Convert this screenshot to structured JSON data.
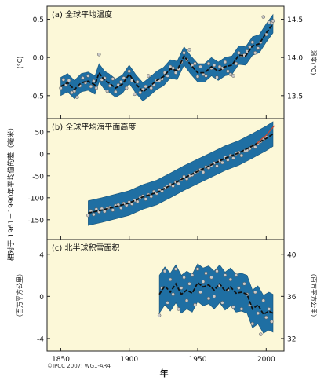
{
  "figure": {
    "y_label_left": "相对于 1961－1990年平均值的差（毫米）",
    "x_label": "年",
    "copyright": "©IPCC 2007: WG1-AR4",
    "colors": {
      "background": "#fcf8d8",
      "band": "#1f6fa3",
      "band_edge": "#16537a",
      "point_fill": "#c9c9c9",
      "line": "#111111",
      "recent_line": "#d2462a"
    }
  },
  "chart_data": [
    {
      "type": "line",
      "title": "(a) 全球平均温度",
      "ylabel_left": "(°C)",
      "ylabel_right": "温度(°C)",
      "xlim": [
        1840,
        2013
      ],
      "ylim": [
        -0.8,
        0.67
      ],
      "y_ticks_left": [
        {
          "value": 0.5,
          "label": "0.5"
        },
        {
          "value": 0,
          "label": "0.0"
        },
        {
          "value": -0.5,
          "label": "-0.5"
        }
      ],
      "y_ticks_right": [
        {
          "value": 0.5,
          "label": "14.5"
        },
        {
          "value": 0,
          "label": "14.0"
        },
        {
          "value": -0.5,
          "label": "13.5"
        }
      ],
      "band_halfwidth": 0.12,
      "series": [
        {
          "x": [
            1850,
            1855,
            1860,
            1865,
            1870,
            1875,
            1878,
            1882,
            1885,
            1890,
            1895,
            1900,
            1905,
            1910,
            1915,
            1920,
            1925,
            1930,
            1935,
            1940,
            1945,
            1950,
            1955,
            1960,
            1965,
            1970,
            1975,
            1980,
            1985,
            1990,
            1995,
            2000,
            2005
          ],
          "y": [
            -0.38,
            -0.33,
            -0.42,
            -0.33,
            -0.31,
            -0.36,
            -0.2,
            -0.3,
            -0.33,
            -0.4,
            -0.35,
            -0.22,
            -0.35,
            -0.45,
            -0.38,
            -0.3,
            -0.25,
            -0.15,
            -0.17,
            0.02,
            -0.1,
            -0.2,
            -0.2,
            -0.12,
            -0.18,
            -0.12,
            -0.1,
            0.03,
            0.02,
            0.15,
            0.18,
            0.32,
            0.44
          ]
        }
      ],
      "points": {
        "x": [
          1850,
          1852,
          1854,
          1856,
          1858,
          1860,
          1862,
          1864,
          1866,
          1868,
          1870,
          1872,
          1874,
          1876,
          1878,
          1880,
          1882,
          1884,
          1886,
          1888,
          1890,
          1892,
          1894,
          1896,
          1898,
          1900,
          1902,
          1904,
          1906,
          1908,
          1910,
          1912,
          1914,
          1916,
          1918,
          1920,
          1922,
          1924,
          1926,
          1928,
          1930,
          1932,
          1934,
          1936,
          1938,
          1940,
          1942,
          1944,
          1946,
          1948,
          1950,
          1952,
          1954,
          1956,
          1958,
          1960,
          1962,
          1964,
          1966,
          1968,
          1970,
          1972,
          1974,
          1976,
          1978,
          1980,
          1982,
          1984,
          1986,
          1988,
          1990,
          1992,
          1994,
          1996,
          1998,
          2000,
          2002,
          2004,
          2005
        ],
        "y": [
          -0.4,
          -0.29,
          -0.36,
          -0.3,
          -0.46,
          -0.44,
          -0.52,
          -0.37,
          -0.27,
          -0.33,
          -0.24,
          -0.38,
          -0.31,
          -0.4,
          0.04,
          -0.29,
          -0.27,
          -0.44,
          -0.37,
          -0.28,
          -0.45,
          -0.36,
          -0.32,
          -0.27,
          -0.4,
          -0.18,
          -0.3,
          -0.48,
          -0.32,
          -0.46,
          -0.42,
          -0.38,
          -0.24,
          -0.4,
          -0.36,
          -0.3,
          -0.3,
          -0.28,
          -0.2,
          -0.24,
          -0.12,
          -0.14,
          -0.2,
          -0.15,
          -0.06,
          0.06,
          -0.03,
          0.1,
          -0.1,
          -0.08,
          -0.25,
          -0.12,
          -0.22,
          -0.24,
          -0.08,
          -0.14,
          -0.1,
          -0.26,
          -0.12,
          -0.14,
          -0.06,
          -0.18,
          -0.22,
          -0.24,
          -0.08,
          0.06,
          0.02,
          0.03,
          0.08,
          0.14,
          0.2,
          0.06,
          0.12,
          0.2,
          0.53,
          0.3,
          0.46,
          0.45,
          0.48
        ]
      }
    },
    {
      "type": "line",
      "title": "(b) 全球平均海平面高度",
      "xlim": [
        1840,
        2013
      ],
      "ylim": [
        -195,
        80
      ],
      "y_ticks_left": [
        {
          "value": 50,
          "label": "50"
        },
        {
          "value": 0,
          "label": "0"
        },
        {
          "value": -50,
          "label": "-50"
        },
        {
          "value": -100,
          "label": "-100"
        },
        {
          "value": -150,
          "label": "-150"
        }
      ],
      "band_halfwidth": 28,
      "series": [
        {
          "x": [
            1870,
            1880,
            1890,
            1900,
            1910,
            1920,
            1930,
            1940,
            1950,
            1960,
            1970,
            1980,
            1990,
            2000,
            2005
          ],
          "y": [
            -135,
            -128,
            -120,
            -112,
            -98,
            -88,
            -72,
            -55,
            -40,
            -25,
            -10,
            2,
            18,
            35,
            45
          ]
        },
        {
          "name": "",
          "x": [
            1993,
            1996,
            2000,
            2003,
            2006
          ],
          "y": [
            22,
            32,
            42,
            53,
            64
          ]
        }
      ],
      "points": {
        "x": [
          1870,
          1872,
          1874,
          1876,
          1878,
          1880,
          1882,
          1884,
          1886,
          1888,
          1890,
          1892,
          1894,
          1896,
          1898,
          1900,
          1902,
          1904,
          1906,
          1908,
          1910,
          1912,
          1914,
          1916,
          1918,
          1920,
          1922,
          1924,
          1926,
          1928,
          1930,
          1932,
          1934,
          1936,
          1938,
          1940,
          1942,
          1944,
          1946,
          1948,
          1950,
          1952,
          1954,
          1956,
          1958,
          1960,
          1962,
          1964,
          1966,
          1968,
          1970,
          1972,
          1974,
          1976,
          1978,
          1980,
          1982,
          1984,
          1986,
          1988,
          1990,
          1992,
          1994,
          1996,
          1998,
          2000
        ],
        "y": [
          -140,
          -130,
          -138,
          -126,
          -132,
          -125,
          -131,
          -124,
          -122,
          -128,
          -118,
          -116,
          -123,
          -113,
          -117,
          -110,
          -114,
          -106,
          -109,
          -100,
          -96,
          -103,
          -93,
          -97,
          -86,
          -90,
          -82,
          -85,
          -78,
          -74,
          -70,
          -73,
          -64,
          -68,
          -58,
          -52,
          -57,
          -50,
          -48,
          -44,
          -40,
          -36,
          -42,
          -30,
          -32,
          -26,
          -21,
          -28,
          -16,
          -20,
          -8,
          -14,
          -4,
          -10,
          0,
          3,
          -4,
          6,
          8,
          12,
          18,
          15,
          24,
          28,
          33,
          38
        ]
      }
    },
    {
      "type": "line",
      "title": "(c) 北半球积雪面积",
      "ylabel_left": "（百万平方公里）",
      "ylabel_right": "（百万平方公里）",
      "xlim": [
        1840,
        2013
      ],
      "ylim": [
        -5.2,
        5.4
      ],
      "y_ticks_left": [
        {
          "value": 4,
          "label": "4"
        },
        {
          "value": 0,
          "label": "0"
        },
        {
          "value": -4,
          "label": "-4"
        }
      ],
      "y_ticks_right": [
        {
          "value": 4,
          "label": "40"
        },
        {
          "value": 0,
          "label": "36"
        },
        {
          "value": -4,
          "label": "32"
        }
      ],
      "band_halfwidth": 1.8,
      "series": [
        {
          "x": [
            1922,
            1926,
            1930,
            1934,
            1938,
            1942,
            1946,
            1950,
            1954,
            1958,
            1962,
            1966,
            1970,
            1974,
            1978,
            1982,
            1986,
            1990,
            1994,
            1998,
            2002,
            2005
          ],
          "y": [
            0.2,
            1.0,
            0.4,
            1.2,
            0.2,
            0.6,
            0.3,
            1.3,
            0.9,
            1.1,
            0.6,
            1.2,
            0.5,
            0.9,
            0.3,
            0.4,
            0.2,
            -1.2,
            -0.8,
            -1.7,
            -1.4,
            -1.6
          ]
        }
      ],
      "points": {
        "x": [
          1922,
          1924,
          1926,
          1928,
          1930,
          1932,
          1934,
          1936,
          1938,
          1940,
          1942,
          1944,
          1946,
          1948,
          1950,
          1952,
          1954,
          1956,
          1958,
          1960,
          1962,
          1964,
          1966,
          1968,
          1970,
          1972,
          1974,
          1976,
          1978,
          1980,
          1982,
          1984,
          1986,
          1988,
          1990,
          1992,
          1994,
          1996,
          1998,
          2000,
          2002,
          2004
        ],
        "y": [
          -1.8,
          0.8,
          2.4,
          -0.6,
          1.6,
          0.2,
          2.6,
          -1.2,
          0.8,
          1.8,
          -0.4,
          1.2,
          2.0,
          -0.8,
          2.6,
          0.4,
          1.4,
          2.2,
          -0.2,
          1.8,
          0.0,
          2.4,
          1.0,
          -0.6,
          2.0,
          0.6,
          1.6,
          -1.0,
          2.0,
          0.8,
          -1.2,
          1.2,
          0.2,
          -0.8,
          -2.6,
          0.4,
          -1.6,
          -3.6,
          -0.4,
          -2.0,
          -1.2,
          -2.4
        ]
      }
    }
  ]
}
